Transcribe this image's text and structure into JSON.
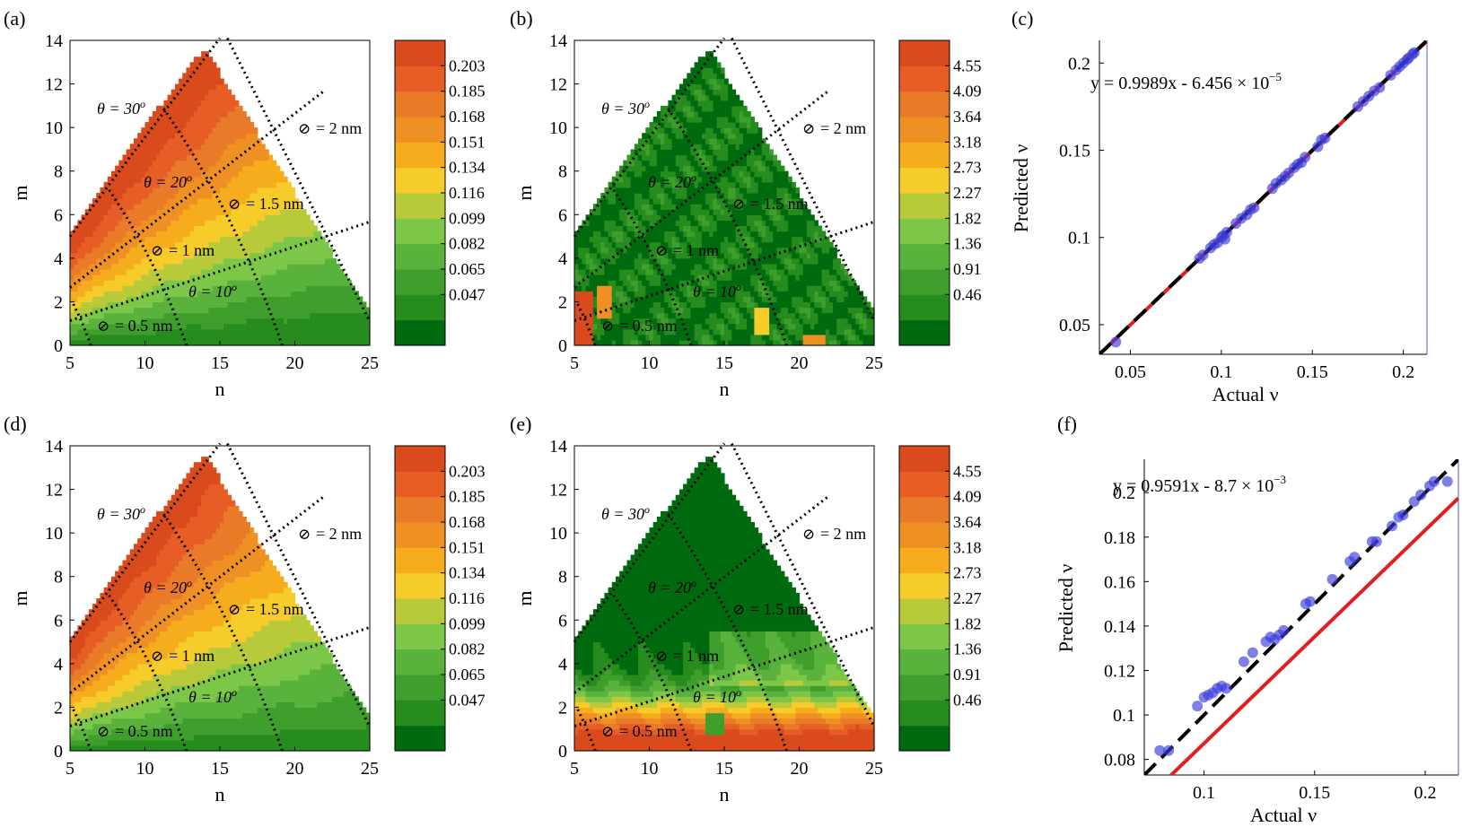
{
  "colors": {
    "scale": [
      "#006b0e",
      "#268c1e",
      "#3f9e2c",
      "#59b23c",
      "#7cc648",
      "#b8c93a",
      "#f6cc2a",
      "#f5ad1e",
      "#ef9024",
      "#e97a28",
      "#e65e26",
      "#d94a1d"
    ],
    "fit_line": "#e02020",
    "identity_line": "#000000",
    "points": "#3b3bdc",
    "guide": "#000000"
  },
  "chart_data": [
    {
      "id": "a",
      "panel_label": "(a)",
      "type": "heatmap",
      "xlabel": "n",
      "ylabel": "m",
      "xlim": [
        5,
        25
      ],
      "ylim": [
        0,
        14
      ],
      "xticks": [
        5,
        10,
        15,
        20,
        25
      ],
      "yticks": [
        0,
        2,
        4,
        6,
        8,
        10,
        12,
        14
      ],
      "field": "nu_actual",
      "colorbar": {
        "ticks": [
          "0.203",
          "0.185",
          "0.168",
          "0.151",
          "0.134",
          "0.116",
          "0.099",
          "0.082",
          "0.065",
          "0.047"
        ]
      },
      "annotations": {
        "diam_labels": [
          {
            "text": "= 0.5 nm",
            "d": 0.5
          },
          {
            "text": "= 1 nm",
            "d": 1.0
          },
          {
            "text": "= 1.5 nm",
            "d": 1.5
          },
          {
            "text": "= 2 nm",
            "d": 2.0
          }
        ],
        "theta_labels": [
          "θ = 30",
          "θ = 20",
          "θ = 10"
        ],
        "degree": "o",
        "diameter_symbol": "⊘"
      }
    },
    {
      "id": "b",
      "panel_label": "(b)",
      "type": "heatmap",
      "xlabel": "n",
      "ylabel": "m",
      "xlim": [
        5,
        25
      ],
      "ylim": [
        0,
        14
      ],
      "xticks": [
        5,
        10,
        15,
        20,
        25
      ],
      "yticks": [
        0,
        2,
        4,
        6,
        8,
        10,
        12,
        14
      ],
      "field": "error_low",
      "colorbar": {
        "ticks": [
          "4.55",
          "4.09",
          "3.64",
          "3.18",
          "2.73",
          "2.27",
          "1.82",
          "1.36",
          "0.91",
          "0.46"
        ]
      },
      "annotations": {
        "diam_labels": [
          {
            "text": "= 0.5 nm",
            "d": 0.5
          },
          {
            "text": "= 1 nm",
            "d": 1.0
          },
          {
            "text": "= 1.5 nm",
            "d": 1.5
          },
          {
            "text": "= 2 nm",
            "d": 2.0
          }
        ],
        "theta_labels": [
          "θ = 30",
          "θ = 20",
          "θ = 10"
        ],
        "degree": "o",
        "diameter_symbol": "⊘"
      }
    },
    {
      "id": "c",
      "panel_label": "(c)",
      "type": "scatter",
      "xlabel": "Actual ν",
      "ylabel": "Predicted ν",
      "xlim": [
        0.033,
        0.213
      ],
      "ylim": [
        0.033,
        0.213
      ],
      "xticks": [
        0.05,
        0.1,
        0.15,
        0.2
      ],
      "yticks": [
        0.05,
        0.1,
        0.15,
        0.2
      ],
      "xtick_labels": [
        "0.05",
        "0.1",
        "0.15",
        "0.2"
      ],
      "ytick_labels": [
        "0.05",
        "0.1",
        "0.15",
        "0.2"
      ],
      "equation": "y = 0.9989x - 6.456 × 10",
      "equation_exp": "−5",
      "fit": {
        "slope": 0.9989,
        "intercept": -6.456e-05
      },
      "x": [
        0.042,
        0.088,
        0.09,
        0.094,
        0.096,
        0.098,
        0.1,
        0.101,
        0.102,
        0.103,
        0.108,
        0.111,
        0.114,
        0.116,
        0.118,
        0.128,
        0.13,
        0.133,
        0.135,
        0.137,
        0.14,
        0.142,
        0.144,
        0.146,
        0.153,
        0.155,
        0.157,
        0.175,
        0.178,
        0.181,
        0.184,
        0.187,
        0.193,
        0.196,
        0.198,
        0.2,
        0.202,
        0.203,
        0.205,
        0.206
      ],
      "y": [
        0.04,
        0.088,
        0.09,
        0.094,
        0.096,
        0.097,
        0.1,
        0.101,
        0.099,
        0.103,
        0.108,
        0.111,
        0.113,
        0.116,
        0.117,
        0.128,
        0.131,
        0.133,
        0.135,
        0.137,
        0.14,
        0.142,
        0.143,
        0.146,
        0.152,
        0.156,
        0.157,
        0.175,
        0.178,
        0.181,
        0.184,
        0.186,
        0.193,
        0.196,
        0.198,
        0.2,
        0.202,
        0.203,
        0.205,
        0.206
      ]
    },
    {
      "id": "d",
      "panel_label": "(d)",
      "type": "heatmap",
      "xlabel": "n",
      "ylabel": "m",
      "xlim": [
        5,
        25
      ],
      "ylim": [
        0,
        14
      ],
      "xticks": [
        5,
        10,
        15,
        20,
        25
      ],
      "yticks": [
        0,
        2,
        4,
        6,
        8,
        10,
        12,
        14
      ],
      "field": "nu_predicted",
      "colorbar": {
        "ticks": [
          "0.203",
          "0.185",
          "0.168",
          "0.151",
          "0.134",
          "0.116",
          "0.099",
          "0.082",
          "0.065",
          "0.047"
        ]
      },
      "annotations": {
        "diam_labels": [
          {
            "text": "= 0.5 nm",
            "d": 0.5
          },
          {
            "text": "= 1 nm",
            "d": 1.0
          },
          {
            "text": "= 1.5 nm",
            "d": 1.5
          },
          {
            "text": "= 2 nm",
            "d": 2.0
          }
        ],
        "theta_labels": [
          "θ = 30",
          "θ = 20",
          "θ = 10"
        ],
        "degree": "o",
        "diameter_symbol": "⊘"
      }
    },
    {
      "id": "e",
      "panel_label": "(e)",
      "type": "heatmap",
      "xlabel": "n",
      "ylabel": "m",
      "xlim": [
        5,
        25
      ],
      "ylim": [
        0,
        14
      ],
      "xticks": [
        5,
        10,
        15,
        20,
        25
      ],
      "yticks": [
        0,
        2,
        4,
        6,
        8,
        10,
        12,
        14
      ],
      "field": "error_high",
      "colorbar": {
        "ticks": [
          "4.55",
          "4.09",
          "3.64",
          "3.18",
          "2.73",
          "2.27",
          "1.82",
          "1.36",
          "0.91",
          "0.46"
        ]
      },
      "annotations": {
        "diam_labels": [
          {
            "text": "= 0.5 nm",
            "d": 0.5
          },
          {
            "text": "= 1 nm",
            "d": 1.0
          },
          {
            "text": "= 1.5 nm",
            "d": 1.5
          },
          {
            "text": "= 2 nm",
            "d": 2.0
          }
        ],
        "theta_labels": [
          "θ = 30",
          "θ = 20",
          "θ = 10"
        ],
        "degree": "o",
        "diameter_symbol": "⊘"
      }
    },
    {
      "id": "f",
      "panel_label": "(f)",
      "type": "scatter",
      "xlabel": "Actual ν",
      "ylabel": "Predicted ν",
      "xlim": [
        0.073,
        0.215
      ],
      "ylim": [
        0.073,
        0.215
      ],
      "xticks": [
        0.1,
        0.15,
        0.2
      ],
      "yticks": [
        0.08,
        0.1,
        0.12,
        0.14,
        0.16,
        0.18,
        0.2
      ],
      "xtick_labels": [
        "0.1",
        "0.15",
        "0.2"
      ],
      "ytick_labels": [
        "0.08",
        "0.1",
        "0.12",
        "0.14",
        "0.16",
        "0.18",
        "0.2"
      ],
      "equation": "y = 0.9591x - 8.7 × 10",
      "equation_exp": "−3",
      "fit": {
        "slope": 0.9591,
        "intercept": -0.0087
      },
      "x": [
        0.08,
        0.084,
        0.097,
        0.1,
        0.102,
        0.104,
        0.106,
        0.108,
        0.11,
        0.118,
        0.122,
        0.128,
        0.13,
        0.132,
        0.134,
        0.136,
        0.146,
        0.148,
        0.158,
        0.166,
        0.168,
        0.176,
        0.178,
        0.185,
        0.188,
        0.19,
        0.195,
        0.198,
        0.202,
        0.204,
        0.21
      ],
      "y": [
        0.084,
        0.084,
        0.104,
        0.108,
        0.109,
        0.11,
        0.112,
        0.113,
        0.112,
        0.124,
        0.128,
        0.133,
        0.135,
        0.134,
        0.136,
        0.138,
        0.15,
        0.151,
        0.161,
        0.169,
        0.171,
        0.178,
        0.178,
        0.185,
        0.189,
        0.19,
        0.196,
        0.199,
        0.203,
        0.205,
        0.205
      ]
    }
  ]
}
